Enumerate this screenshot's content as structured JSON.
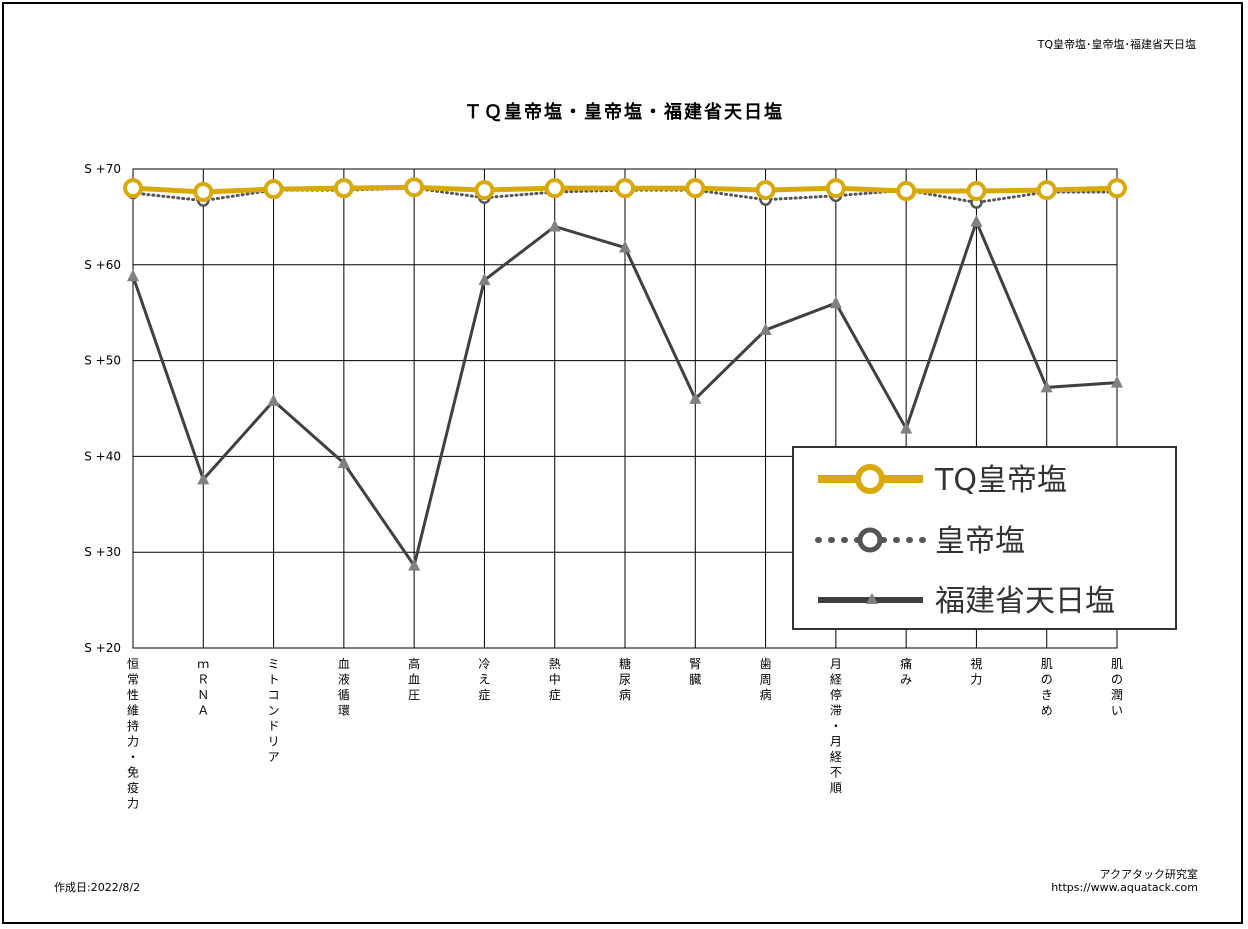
{
  "header_right": "TQ皇帝塩･皇帝塩･福建省天日塩",
  "footer": {
    "created": "作成日:2022/8/2",
    "company": "アクアタック研究室",
    "url": "https://www.aquatack.com"
  },
  "chart_data": {
    "type": "line",
    "title": "ＴＱ皇帝塩・皇帝塩・福建省天日塩",
    "y_tick_labels": [
      "S +70",
      "S +60",
      "S +50",
      "S +40",
      "S +30",
      "S +20"
    ],
    "y_ticks": [
      70,
      60,
      50,
      40,
      30,
      20
    ],
    "ylim": [
      20,
      70
    ],
    "grid": true,
    "legend_position": "bottom-right",
    "categories": [
      "恒常性維持力・免疫力",
      "ｍＲＮＡ",
      "ミトコンドリア",
      "血液循環",
      "高血圧",
      "冷え症",
      "熱中症",
      "糖尿病",
      "腎臓",
      "歯周病",
      "月経停滞・月経不順",
      "痛み",
      "視力",
      "肌のきめ",
      "肌の潤い"
    ],
    "series": [
      {
        "name": "TQ皇帝塩",
        "color": "#d9a90c",
        "marker": "circle",
        "line": "solid",
        "values": [
          68.0,
          67.6,
          67.9,
          68.0,
          68.1,
          67.8,
          68.0,
          68.0,
          68.0,
          67.8,
          68.0,
          67.7,
          67.7,
          67.8,
          68.0
        ]
      },
      {
        "name": "皇帝塩",
        "color": "#555555",
        "marker": "circle",
        "line": "dotted",
        "values": [
          67.5,
          66.7,
          67.8,
          67.8,
          68.0,
          67.0,
          67.6,
          67.8,
          67.8,
          66.8,
          67.2,
          67.8,
          66.5,
          67.6,
          67.6
        ]
      },
      {
        "name": "福建省天日塩",
        "color": "#404040",
        "marker": "triangle",
        "line": "solid",
        "values": [
          58.8,
          37.6,
          45.8,
          39.3,
          28.6,
          58.4,
          64.0,
          61.8,
          46.0,
          53.2,
          56.0,
          42.9,
          64.5,
          47.2,
          47.7
        ]
      }
    ]
  }
}
